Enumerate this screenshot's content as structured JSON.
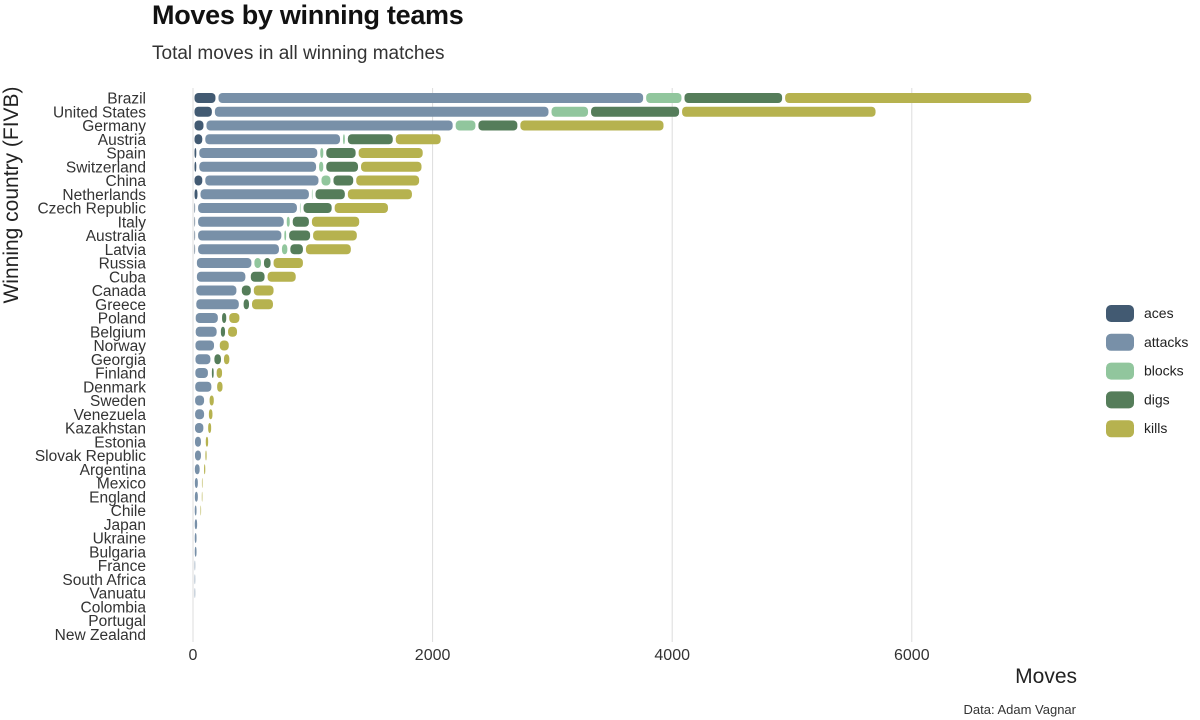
{
  "title": "Moves by winning teams",
  "subtitle": "Total moves in all winning matches",
  "caption": "Data: Adam Vagnar",
  "chart_data": {
    "type": "bar",
    "orientation": "horizontal",
    "stacked": true,
    "xlabel": "Moves",
    "ylabel": "Winning country (FIVB)",
    "xlim": [
      0,
      7500
    ],
    "xticks": [
      0,
      2000,
      4000,
      6000
    ],
    "grid": "vertical major gridlines",
    "legend_position": "right",
    "categories": [
      "Brazil",
      "United States",
      "Germany",
      "Austria",
      "Spain",
      "Switzerland",
      "China",
      "Netherlands",
      "Czech Republic",
      "Italy",
      "Australia",
      "Latvia",
      "Russia",
      "Cuba",
      "Canada",
      "Greece",
      "Poland",
      "Belgium",
      "Norway",
      "Georgia",
      "Finland",
      "Denmark",
      "Sweden",
      "Venezuela",
      "Kazakhstan",
      "Estonia",
      "Slovak Republic",
      "Argentina",
      "Mexico",
      "England",
      "Chile",
      "Japan",
      "Ukraine",
      "Bulgaria",
      "France",
      "South Africa",
      "Vanuatu",
      "Colombia",
      "Portugal",
      "New Zealand"
    ],
    "series": [
      {
        "name": "aces",
        "color": "#425a72",
        "values": [
          200,
          170,
          100,
          90,
          40,
          40,
          90,
          50,
          30,
          30,
          30,
          30,
          20,
          20,
          15,
          15,
          10,
          10,
          8,
          8,
          7,
          6,
          5,
          5,
          4,
          4,
          4,
          3,
          3,
          3,
          2,
          2,
          2,
          2,
          1,
          1,
          1,
          1,
          1,
          0
        ]
      },
      {
        "name": "attacks",
        "color": "#7890a8",
        "values": [
          3570,
          2810,
          2080,
          1150,
          1010,
          1000,
          970,
          930,
          850,
          740,
          720,
          700,
          480,
          430,
          360,
          380,
          210,
          200,
          180,
          150,
          130,
          160,
          100,
          100,
          95,
          75,
          75,
          65,
          50,
          50,
          40,
          45,
          40,
          40,
          30,
          30,
          30,
          15,
          10,
          2
        ]
      },
      {
        "name": "blocks",
        "color": "#91c69d",
        "values": [
          320,
          330,
          190,
          40,
          50,
          60,
          100,
          30,
          30,
          50,
          40,
          70,
          80,
          20,
          20,
          15,
          10,
          10,
          8,
          8,
          8,
          8,
          6,
          5,
          5,
          5,
          4,
          4,
          4,
          3,
          3,
          3,
          3,
          2,
          2,
          2,
          2,
          2,
          1,
          0
        ]
      },
      {
        "name": "digs",
        "color": "#557d5a",
        "values": [
          840,
          760,
          350,
          400,
          270,
          290,
          190,
          270,
          260,
          160,
          200,
          130,
          80,
          140,
          100,
          70,
          60,
          60,
          15,
          80,
          40,
          15,
          15,
          10,
          10,
          10,
          8,
          8,
          5,
          5,
          5,
          5,
          5,
          5,
          5,
          5,
          5,
          3,
          2,
          0
        ]
      },
      {
        "name": "kills",
        "color": "#b6b24f",
        "values": [
          2080,
          1640,
          1220,
          400,
          560,
          530,
          550,
          560,
          470,
          420,
          390,
          400,
          270,
          260,
          190,
          200,
          110,
          100,
          100,
          70,
          70,
          70,
          60,
          55,
          50,
          45,
          35,
          35,
          30,
          30,
          30,
          25,
          25,
          25,
          20,
          20,
          20,
          10,
          8,
          2
        ]
      }
    ]
  }
}
